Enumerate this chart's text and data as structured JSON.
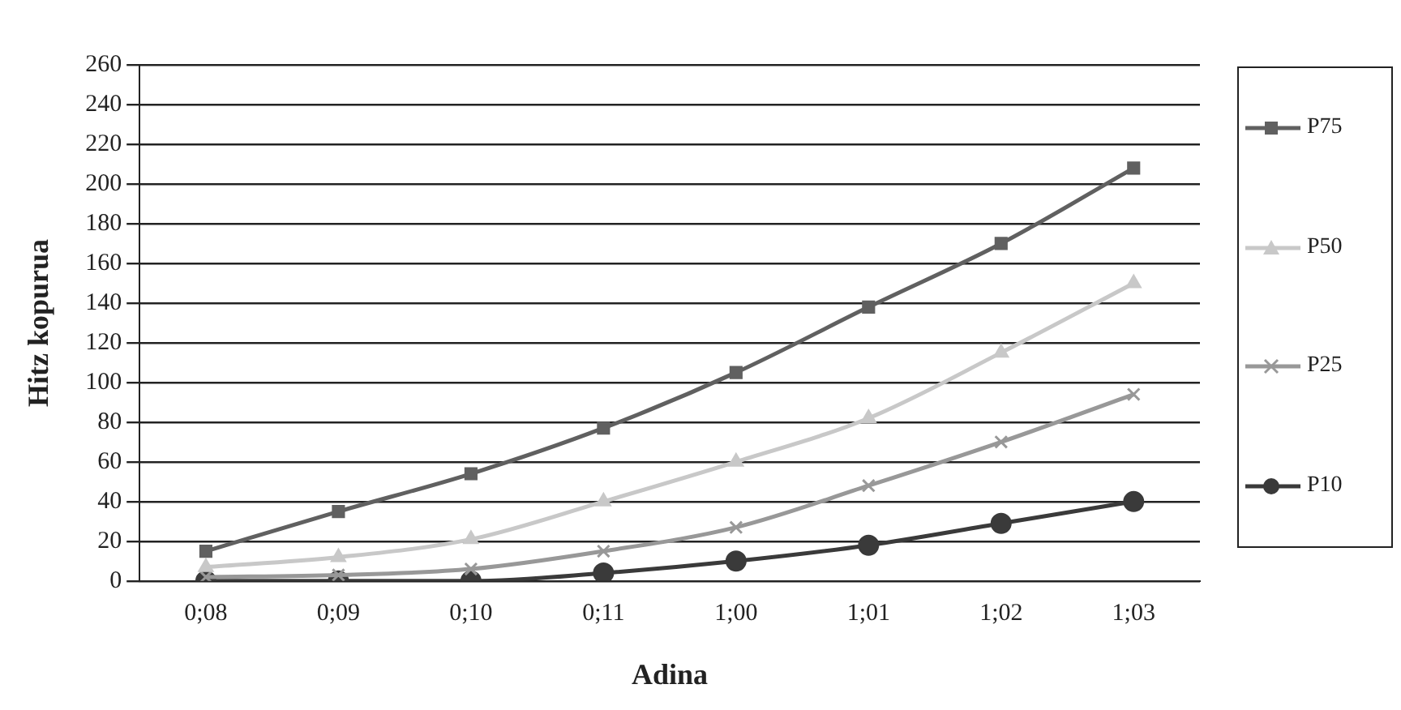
{
  "chart_data": {
    "type": "line",
    "xlabel": "Adina",
    "ylabel": "Hitz kopurua",
    "categories": [
      "0;08",
      "0;09",
      "0;10",
      "0;11",
      "1;00",
      "1;01",
      "1;02",
      "1;03"
    ],
    "series": [
      {
        "name": "P75",
        "color": "#606060",
        "marker": "square",
        "values": [
          15,
          35,
          54,
          77,
          105,
          138,
          170,
          208
        ]
      },
      {
        "name": "P50",
        "color": "#c8c8c8",
        "marker": "triangle",
        "values": [
          7,
          12,
          21,
          40,
          60,
          82,
          115,
          150
        ]
      },
      {
        "name": "P25",
        "color": "#989898",
        "marker": "cross",
        "values": [
          2,
          3,
          6,
          15,
          27,
          48,
          70,
          94
        ]
      },
      {
        "name": "P10",
        "color": "#3a3a3a",
        "marker": "circle",
        "values": [
          0,
          0,
          0,
          4,
          10,
          18,
          29,
          40
        ]
      }
    ],
    "ylim": [
      0,
      260
    ],
    "yticks": [
      0,
      20,
      40,
      60,
      80,
      100,
      120,
      140,
      160,
      180,
      200,
      220,
      240,
      260
    ],
    "grid": "y",
    "legend": "right"
  }
}
